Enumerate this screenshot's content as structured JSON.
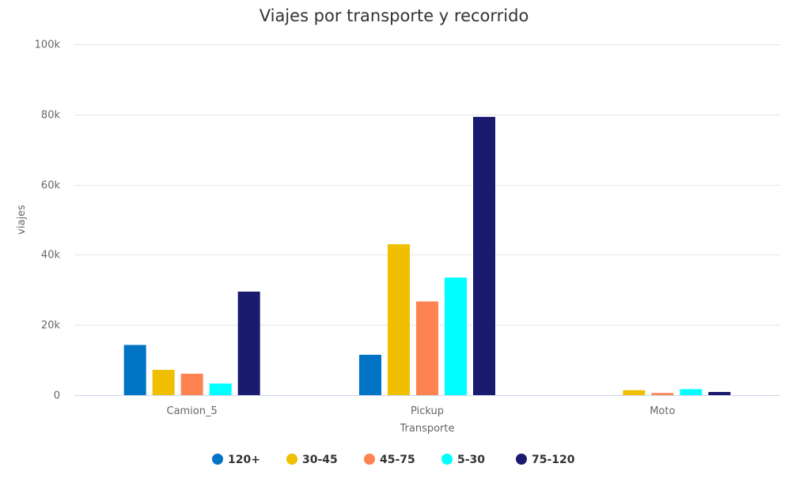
{
  "chart_data": {
    "type": "bar",
    "title": "Viajes por transporte y recorrido",
    "xlabel": "Transporte",
    "ylabel": "viajes",
    "categories": [
      "Camion_5",
      "Pickup",
      "Moto"
    ],
    "ylim": [
      0,
      100000
    ],
    "yticks": [
      {
        "value": 0,
        "label": "0"
      },
      {
        "value": 20000,
        "label": "20k"
      },
      {
        "value": 40000,
        "label": "40k"
      },
      {
        "value": 60000,
        "label": "60k"
      },
      {
        "value": 80000,
        "label": "80k"
      },
      {
        "value": 100000,
        "label": "100k"
      }
    ],
    "grid": true,
    "legend_position": "bottom-center",
    "series": [
      {
        "name": "120+",
        "color": "#0073c4",
        "values": [
          14300,
          11500,
          0
        ]
      },
      {
        "name": "30-45",
        "color": "#efbf00",
        "values": [
          7200,
          43000,
          1400
        ]
      },
      {
        "name": "45-75",
        "color": "#ff8251",
        "values": [
          6100,
          26700,
          600
        ]
      },
      {
        "name": "5-30",
        "color": "#00ffff",
        "values": [
          3300,
          33500,
          1700
        ]
      },
      {
        "name": "75-120",
        "color": "#1a1a6e",
        "values": [
          29500,
          79300,
          900
        ]
      }
    ]
  }
}
